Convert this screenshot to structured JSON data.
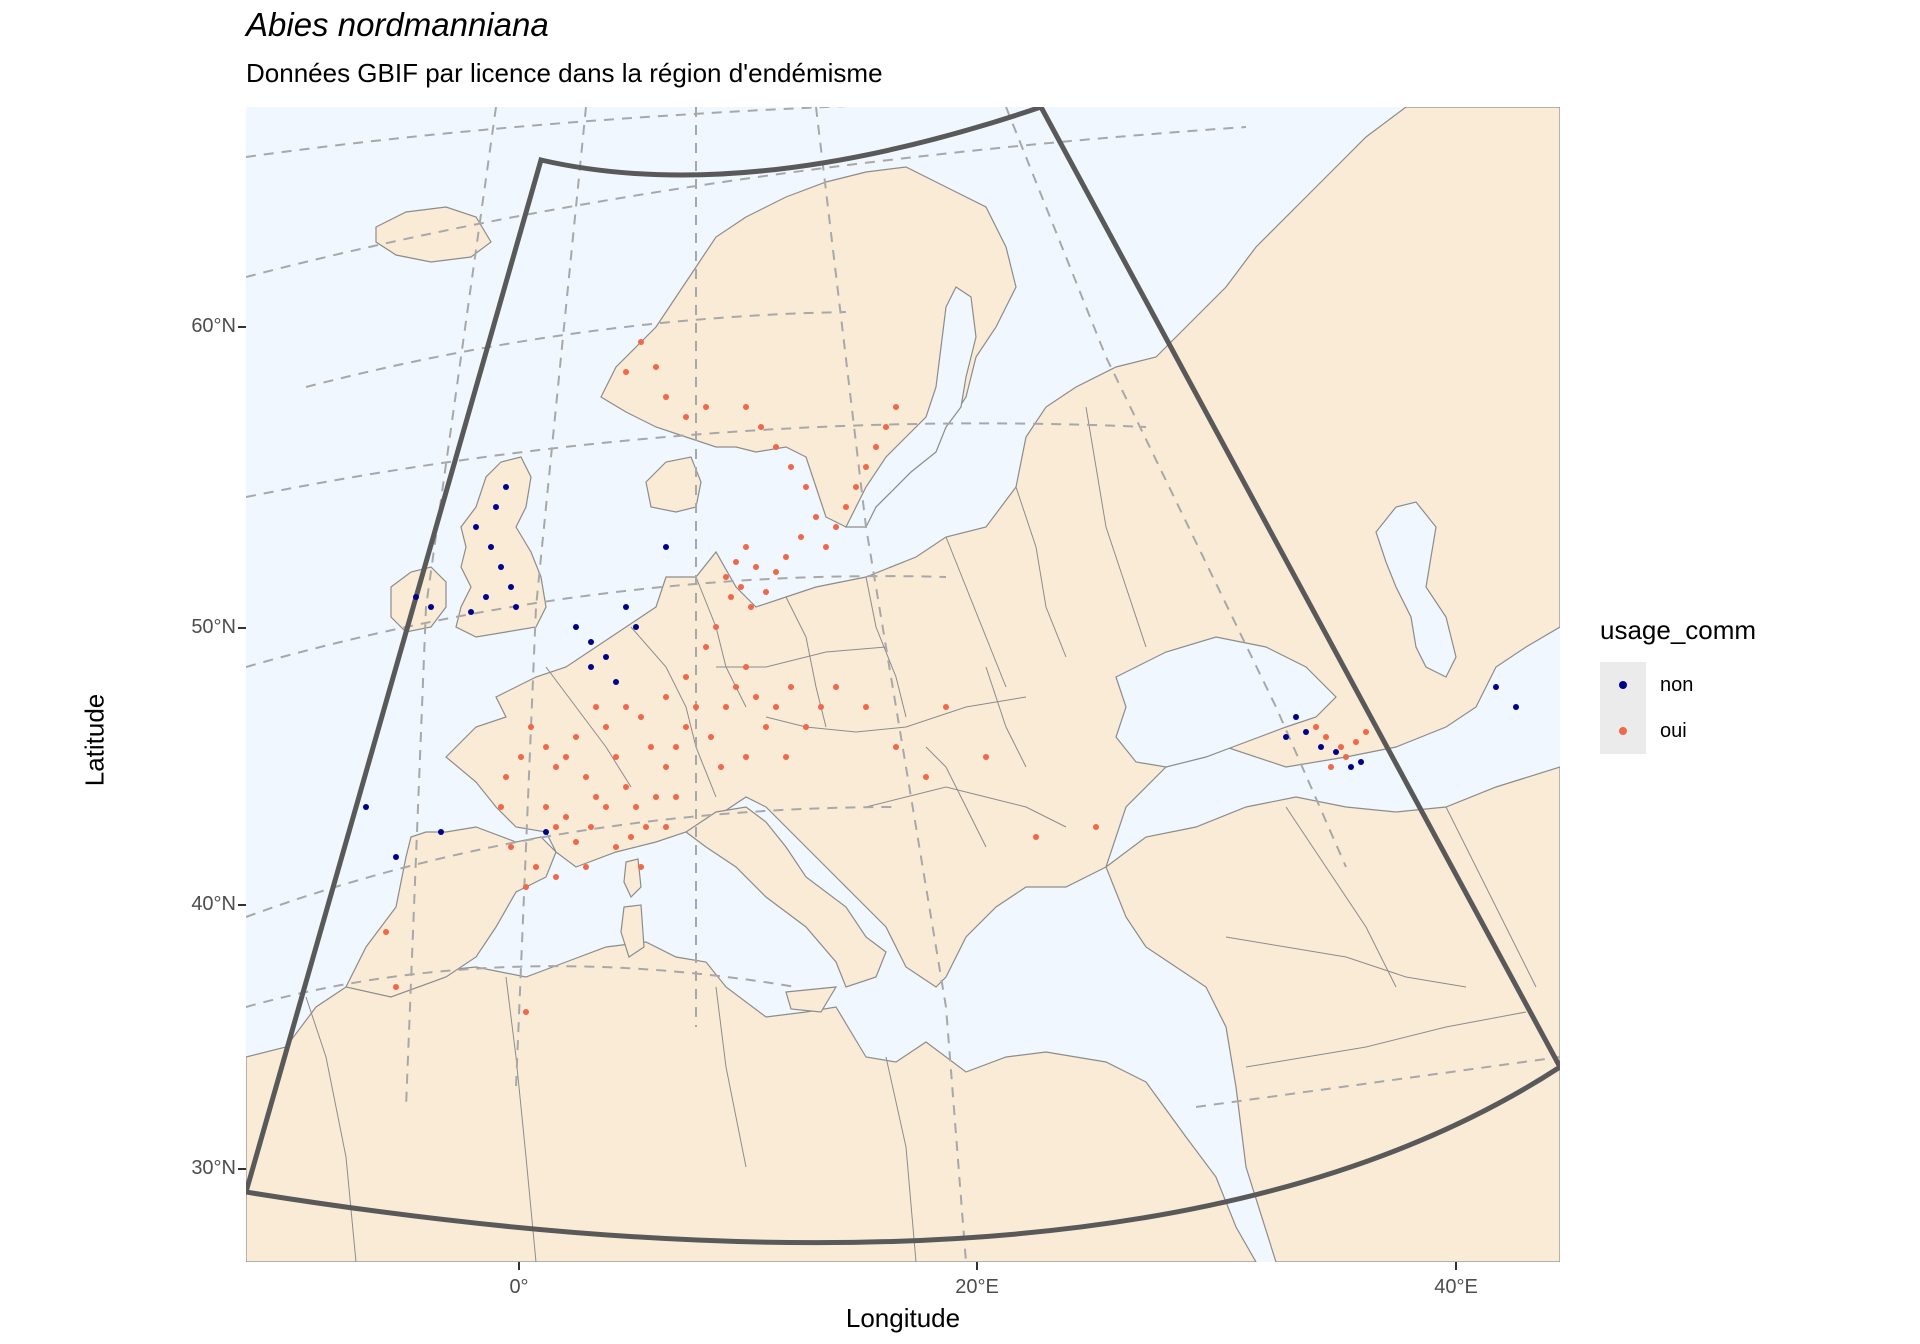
{
  "title": "Abies nordmanniana",
  "subtitle": "Données GBIF par licence dans la région d'endémisme",
  "axes": {
    "x_title": "Longitude",
    "y_title": "Latitude",
    "x_ticks": [
      "0°",
      "20°E",
      "40°E"
    ],
    "y_ticks": [
      "60°N",
      "50°N",
      "40°N",
      "30°N"
    ]
  },
  "legend": {
    "title": "usage_comm",
    "items": [
      {
        "label": "non",
        "color": "#00008b"
      },
      {
        "label": "oui",
        "color": "#f0674a"
      }
    ]
  },
  "colors": {
    "ocean": "#f0f7fe",
    "land": "#faebd7",
    "border": "#8c8c8c",
    "graticule": "#a8a8a8",
    "region_outline": "#595959"
  }
}
